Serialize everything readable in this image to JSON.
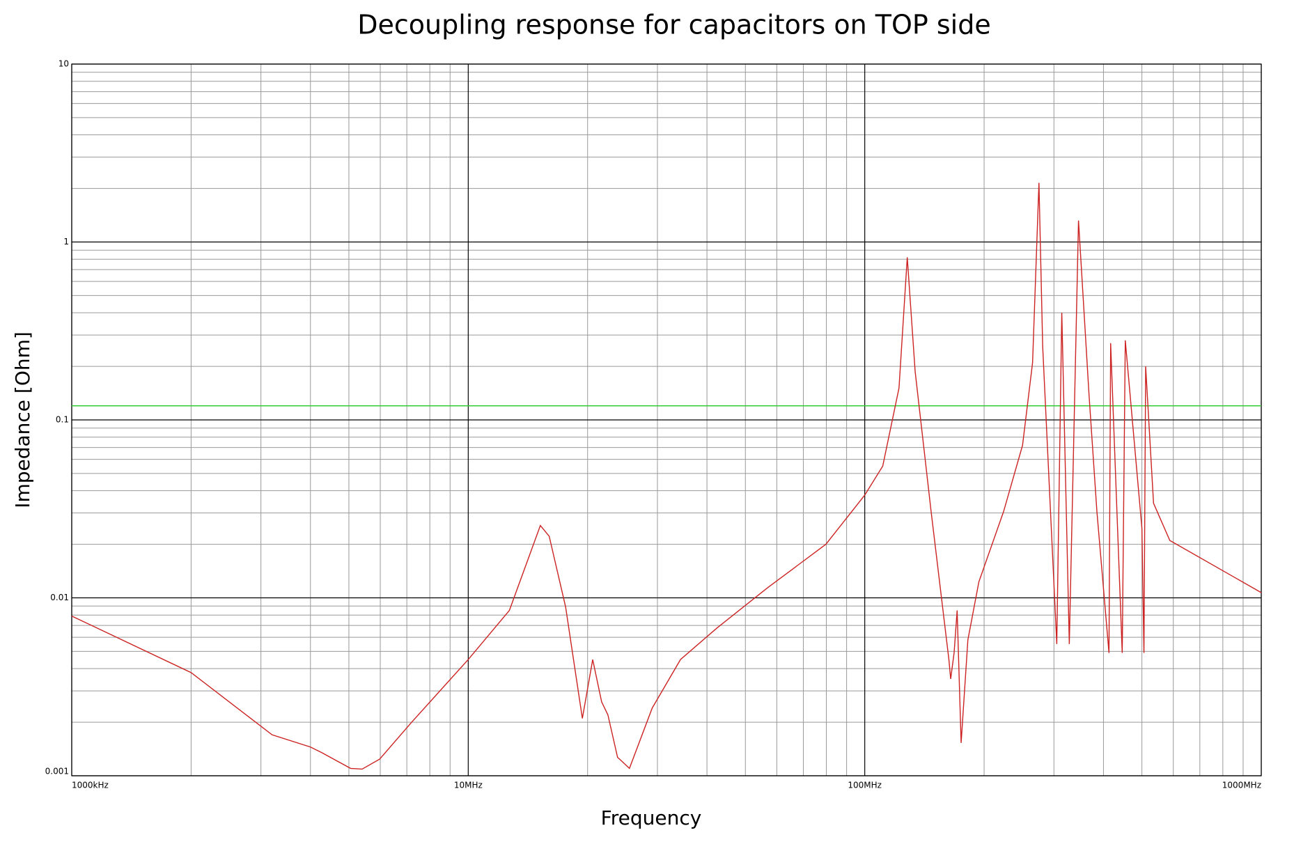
{
  "chart_data": {
    "type": "line",
    "title": "Decoupling response for capacitors on TOP side",
    "xlabel": "Frequency",
    "ylabel": "Impedance [Ohm]",
    "xlog": true,
    "ylog": true,
    "grid": true,
    "minor_grid": true,
    "xlim": [
      1,
      1000
    ],
    "ylim": [
      0.001,
      10
    ],
    "xticks": [
      {
        "value": 1,
        "label": "1000kHz"
      },
      {
        "value": 10,
        "label": "10MHz"
      },
      {
        "value": 100,
        "label": "100MHz"
      },
      {
        "value": 1000,
        "label": "1000MHz"
      }
    ],
    "yticks": [
      0.001,
      0.01,
      0.1,
      1,
      10
    ],
    "hlines": [
      {
        "value": 0.12,
        "color": "#33cc33"
      }
    ],
    "x": [
      1,
      2.0,
      3.2,
      4.0,
      4.27,
      5.05,
      5.4,
      5.98,
      7.2,
      10,
      12.7,
      15.2,
      16,
      17.6,
      19.4,
      20.6,
      21.7,
      22.5,
      23.8,
      25.5,
      29.1,
      34.3,
      42.5,
      56.9,
      79.8,
      100,
      111,
      122,
      128,
      134,
      147,
      163,
      164.7,
      168,
      171,
      175,
      182,
      194,
      224,
      250,
      265,
      275,
      281,
      305,
      314,
      328,
      346,
      368,
      385,
      413,
      417,
      446,
      454,
      500,
      506,
      511,
      535,
      588,
      1000
    ],
    "series": [
      {
        "name": "Impedance",
        "color": "#cc2222",
        "values": [
          0.0079,
          0.0038,
          0.0017,
          0.00145,
          0.00135,
          0.0011,
          0.00109,
          0.00124,
          0.002,
          0.0045,
          0.0085,
          0.0255,
          0.0222,
          0.0089,
          0.0021,
          0.0045,
          0.0026,
          0.0022,
          0.00127,
          0.0011,
          0.0024,
          0.0045,
          0.0068,
          0.0114,
          0.02,
          0.0378,
          0.055,
          0.151,
          0.82,
          0.187,
          0.0306,
          0.0045,
          0.0035,
          0.0049,
          0.0085,
          0.00153,
          0.0058,
          0.0123,
          0.0306,
          0.072,
          0.21,
          2.15,
          0.26,
          0.0055,
          0.4,
          0.0055,
          1.32,
          0.136,
          0.0306,
          0.0049,
          0.27,
          0.0049,
          0.28,
          0.0246,
          0.0049,
          0.2,
          0.034,
          0.021,
          0.0107
        ]
      }
    ]
  }
}
